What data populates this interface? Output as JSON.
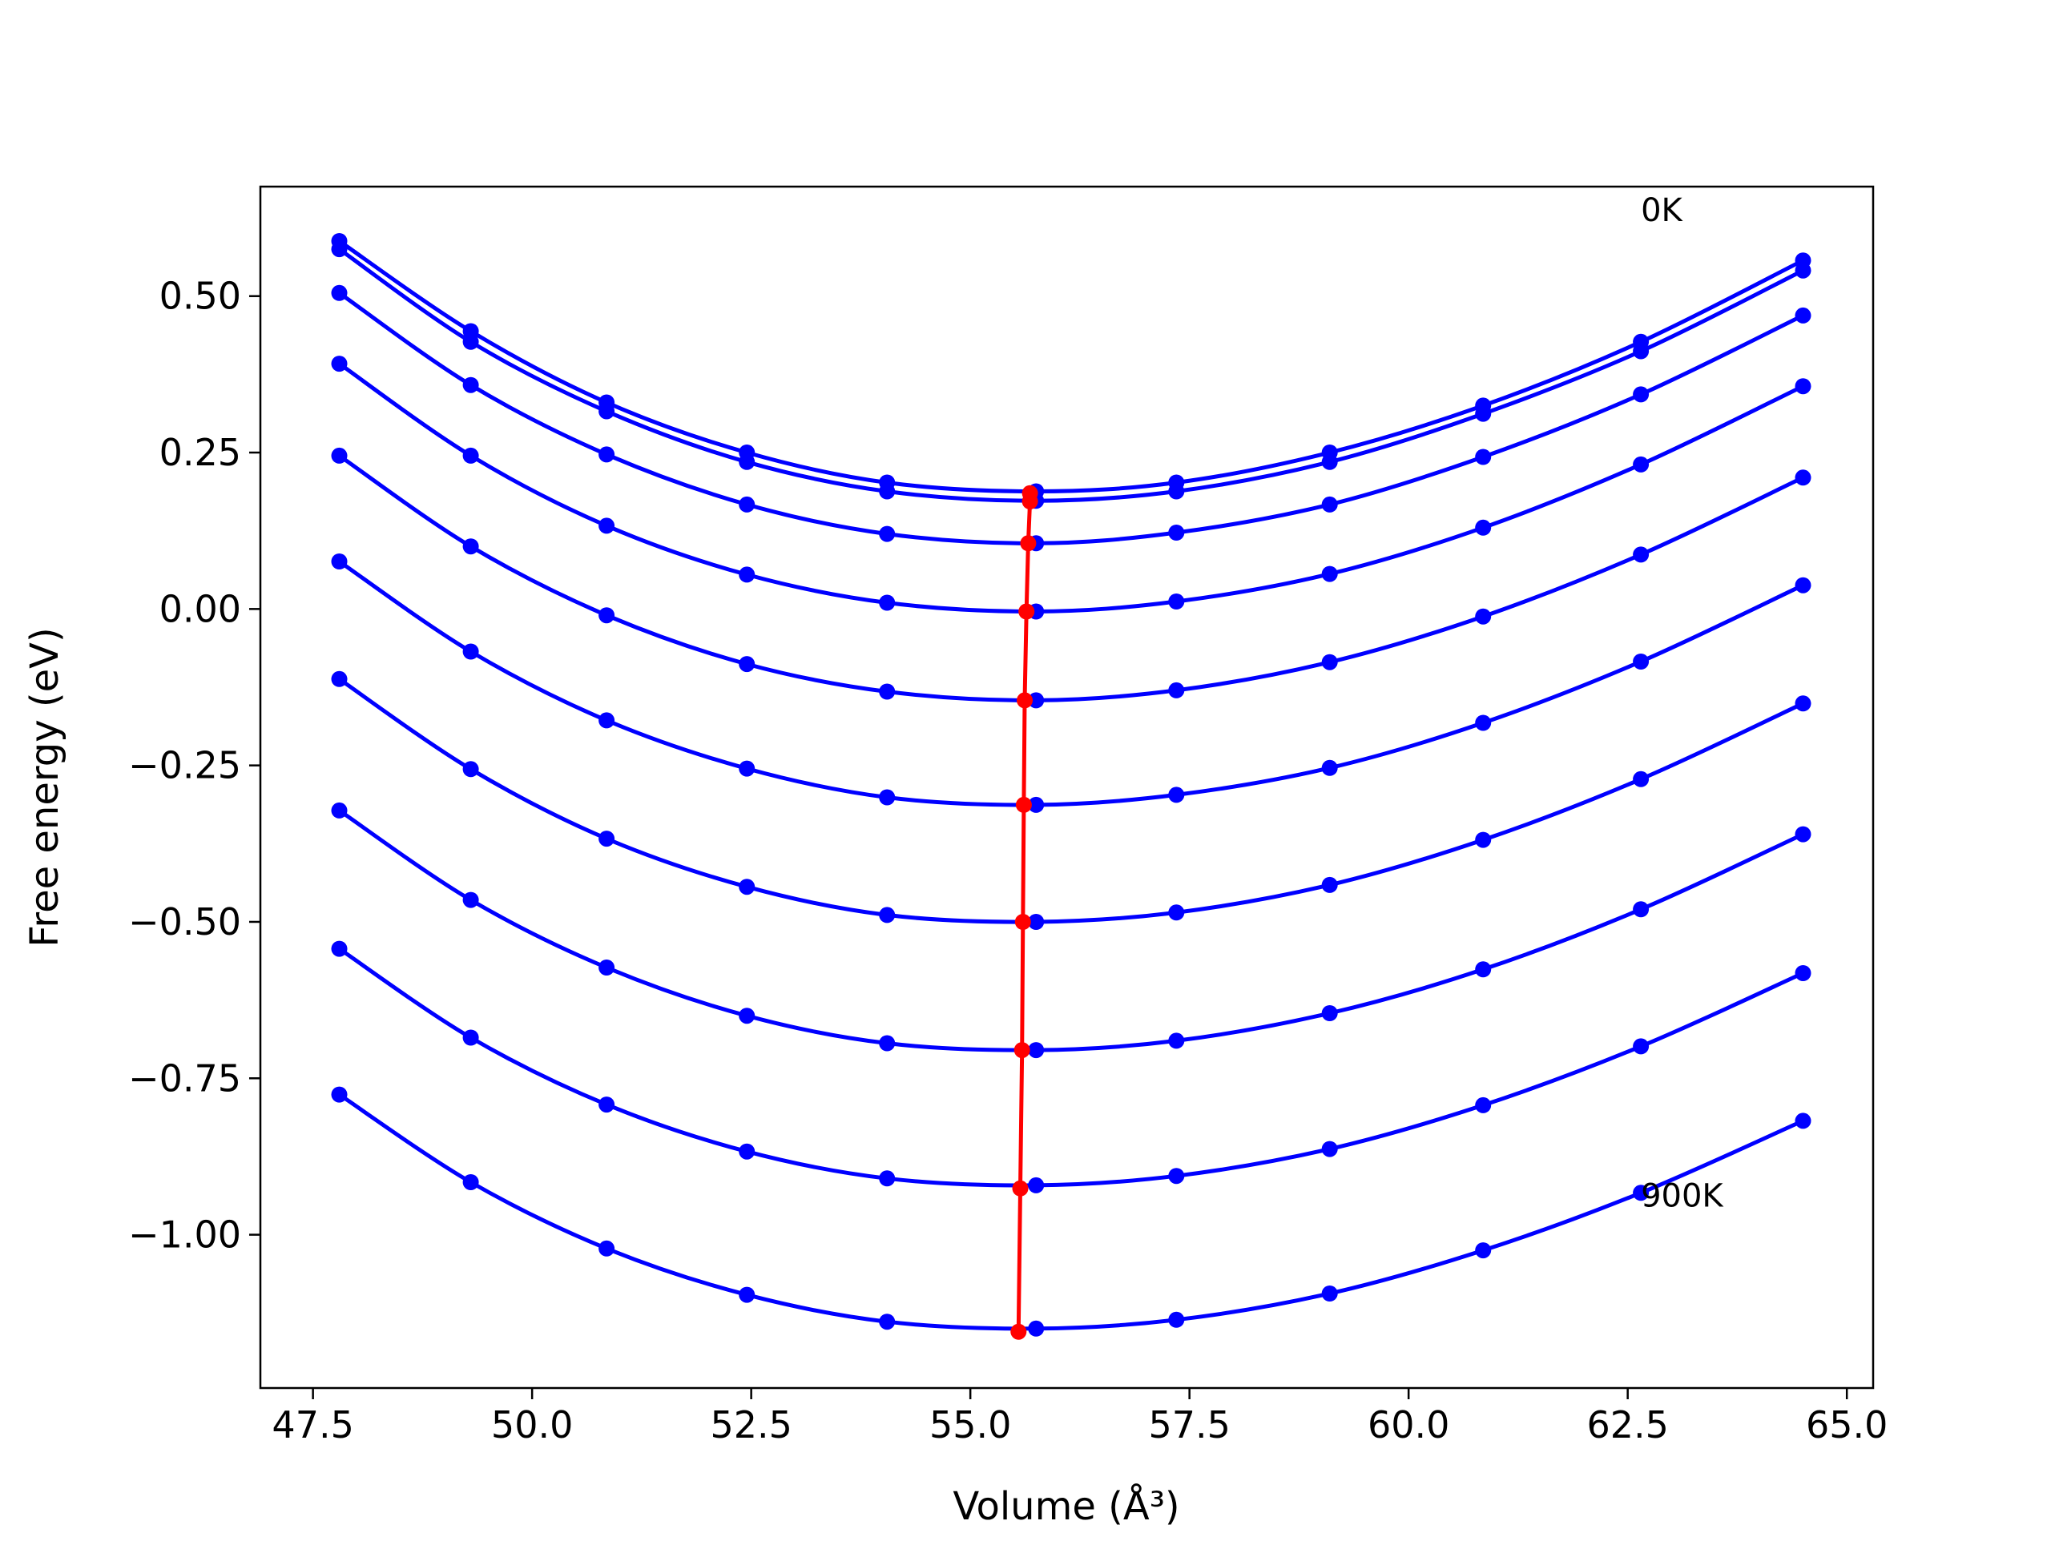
{
  "chart_data": {
    "type": "line",
    "title": "",
    "xlabel": "Volume (Å³)",
    "ylabel": "Free energy (eV)",
    "xlim": [
      46.9,
      65.3
    ],
    "ylim": [
      -1.245,
      0.675
    ],
    "grid": false,
    "x_ticks": [
      "47.5",
      "50.0",
      "52.5",
      "55.0",
      "57.5",
      "60.0",
      "62.5",
      "65.0"
    ],
    "y_ticks": [
      "−1.00",
      "−0.75",
      "−0.50",
      "−0.25",
      "0.00",
      "0.25",
      "0.50"
    ],
    "annotations": [
      {
        "text": "0K",
        "x": 62.65,
        "y": 0.62
      },
      {
        "text": "900K",
        "x": 62.65,
        "y": -0.955
      }
    ],
    "curve_color": "#0000ff",
    "min_line_color": "#ff0000",
    "volumes": [
      47.8,
      49.3,
      50.85,
      52.45,
      54.05,
      55.75,
      57.35,
      59.1,
      60.85,
      62.65,
      64.5
    ],
    "series": [
      {
        "values": [
          0.588,
          0.444,
          0.33,
          0.25,
          0.202,
          0.188,
          0.202,
          0.25,
          0.325,
          0.427,
          0.557
        ]
      },
      {
        "values": [
          0.575,
          0.427,
          0.316,
          0.235,
          0.188,
          0.173,
          0.188,
          0.235,
          0.312,
          0.412,
          0.541
        ]
      },
      {
        "values": [
          0.505,
          0.358,
          0.247,
          0.167,
          0.12,
          0.105,
          0.122,
          0.167,
          0.243,
          0.343,
          0.469
        ]
      },
      {
        "values": [
          0.392,
          0.245,
          0.133,
          0.055,
          0.01,
          -0.004,
          0.012,
          0.056,
          0.13,
          0.231,
          0.356
        ]
      },
      {
        "values": [
          0.245,
          0.1,
          -0.01,
          -0.088,
          -0.132,
          -0.146,
          -0.13,
          -0.085,
          -0.012,
          0.087,
          0.21
        ]
      },
      {
        "values": [
          0.076,
          -0.068,
          -0.178,
          -0.255,
          -0.301,
          -0.313,
          -0.297,
          -0.254,
          -0.182,
          -0.084,
          0.038
        ]
      },
      {
        "values": [
          -0.112,
          -0.256,
          -0.367,
          -0.444,
          -0.489,
          -0.5,
          -0.485,
          -0.441,
          -0.369,
          -0.272,
          -0.151
        ]
      },
      {
        "values": [
          -0.322,
          -0.465,
          -0.573,
          -0.65,
          -0.694,
          -0.705,
          -0.69,
          -0.646,
          -0.576,
          -0.48,
          -0.36
        ]
      },
      {
        "values": [
          -0.543,
          -0.685,
          -0.792,
          -0.867,
          -0.91,
          -0.921,
          -0.906,
          -0.863,
          -0.793,
          -0.699,
          -0.582
        ]
      },
      {
        "values": [
          -0.776,
          -0.916,
          -1.022,
          -1.096,
          -1.139,
          -1.15,
          -1.136,
          -1.094,
          -1.025,
          -0.933,
          -0.818
        ]
      }
    ],
    "minima": {
      "x": [
        55.68,
        55.68,
        55.66,
        55.64,
        55.62,
        55.61,
        55.6,
        55.59,
        55.57,
        55.55
      ],
      "y": [
        0.185,
        0.172,
        0.105,
        -0.004,
        -0.146,
        -0.313,
        -0.5,
        -0.705,
        -0.926,
        -1.155
      ]
    }
  }
}
